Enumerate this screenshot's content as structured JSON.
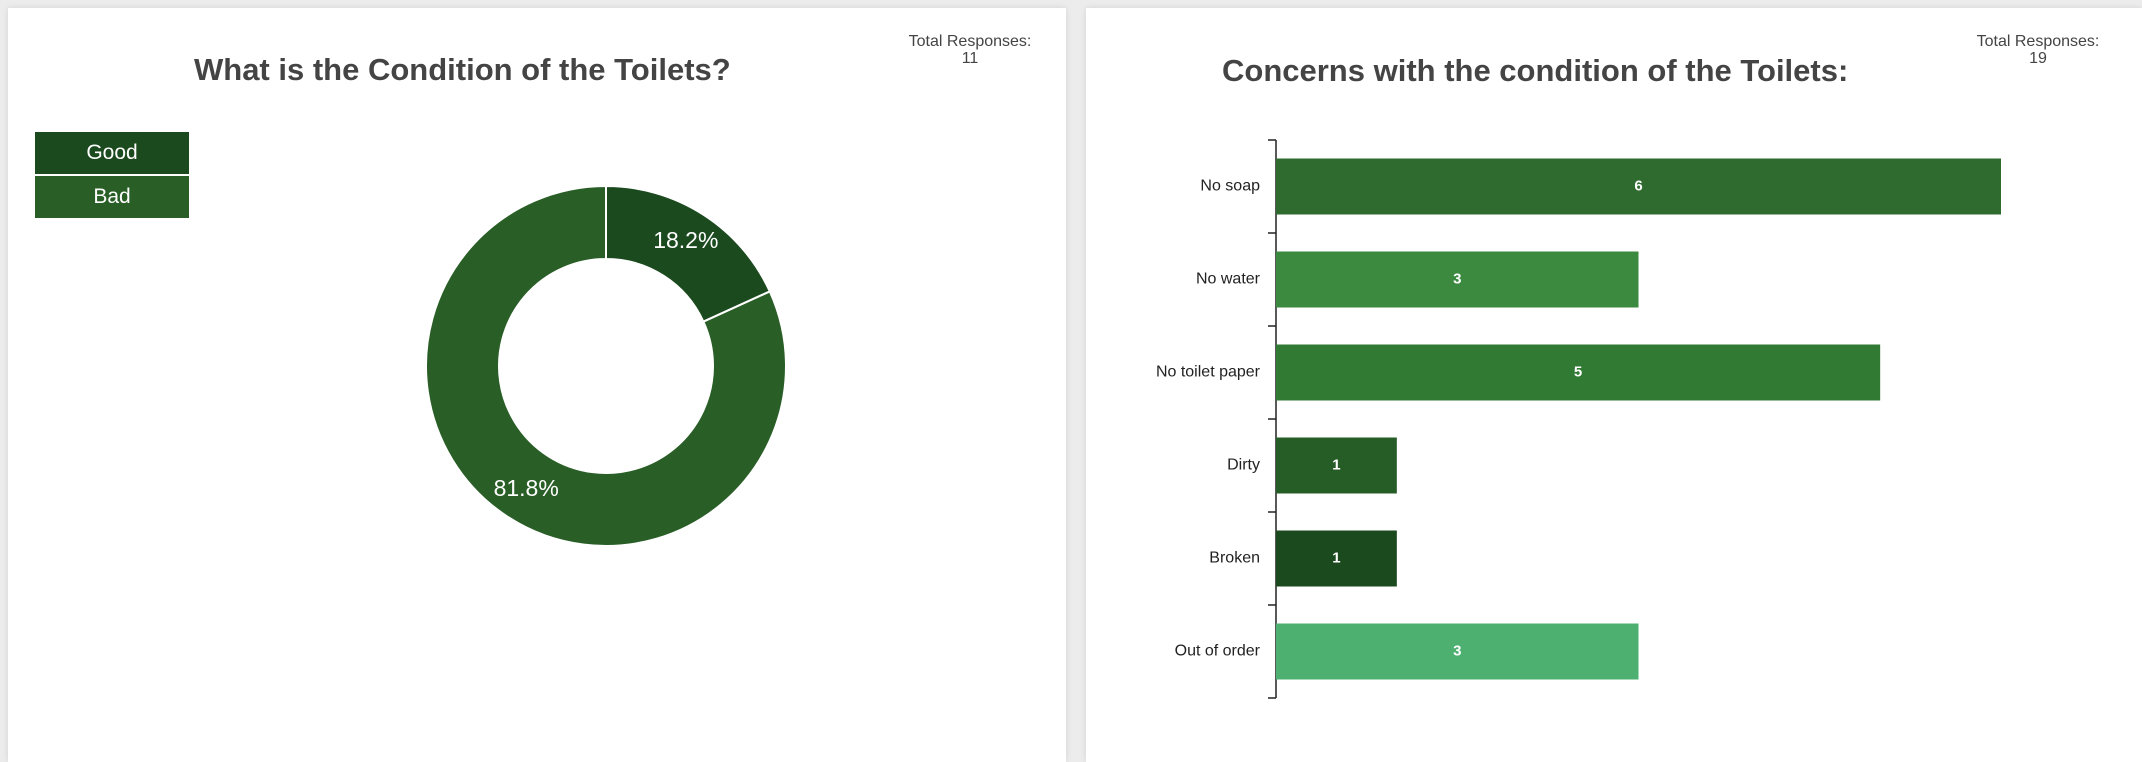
{
  "charts": {
    "condition": {
      "total_label": "Total Responses:",
      "total_value": "11"
    },
    "concerns": {
      "total_label": "Total Responses:",
      "total_value": "19"
    }
  },
  "chart_data": [
    {
      "type": "pie",
      "title": "What is the Condition of the Toilets?",
      "donut": true,
      "categories": [
        "Good",
        "Bad"
      ],
      "values": [
        18.2,
        81.8
      ],
      "value_labels": [
        "18.2%",
        "81.8%"
      ],
      "colors": [
        "#1b4a1e",
        "#295e26"
      ],
      "legend_position": "top-left"
    },
    {
      "type": "bar",
      "orientation": "horizontal",
      "title": "Concerns with the condition of the Toilets:",
      "categories": [
        "No soap",
        "No water",
        "No toilet paper",
        "Dirty",
        "Broken",
        "Out of order"
      ],
      "values": [
        6,
        3,
        5,
        1,
        1,
        3
      ],
      "colors": [
        "#2f6b2e",
        "#3c8a3f",
        "#317a33",
        "#265d27",
        "#1c4a1f",
        "#4db070"
      ],
      "xlim": [
        0,
        6
      ],
      "grid": false
    }
  ]
}
